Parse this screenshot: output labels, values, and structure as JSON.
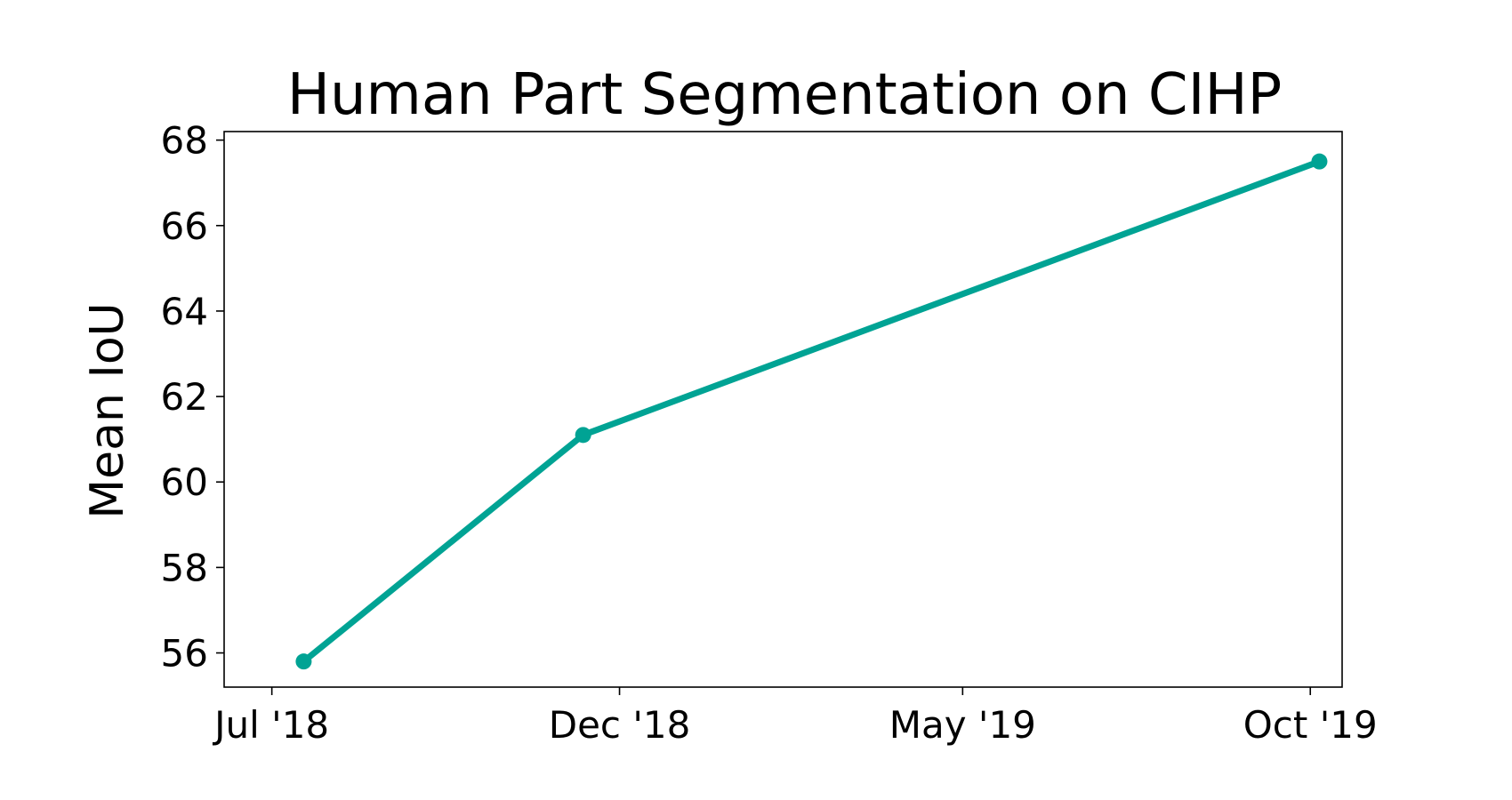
{
  "chart_data": {
    "type": "line",
    "title": "Human Part Segmentation on CIHP",
    "xlabel": "",
    "ylabel": "Mean IoU",
    "x_tick_labels": [
      "Jul '18",
      "Dec '18",
      "May '19",
      "Oct '19"
    ],
    "x_ticks": [
      "2018-07-01",
      "2018-12-01",
      "2019-05-01",
      "2019-10-01"
    ],
    "y_ticks": [
      56,
      58,
      60,
      62,
      64,
      66,
      68
    ],
    "xlim": [
      "2018-06-10",
      "2019-10-15"
    ],
    "ylim": [
      55.2,
      68.2
    ],
    "grid": false,
    "series": [
      {
        "x": [
          "2018-07-15",
          "2018-11-15",
          "2019-10-05"
        ],
        "y": [
          55.8,
          61.1,
          67.5
        ]
      }
    ],
    "colors": {
      "line": "#00a394",
      "axis": "#000000"
    }
  }
}
